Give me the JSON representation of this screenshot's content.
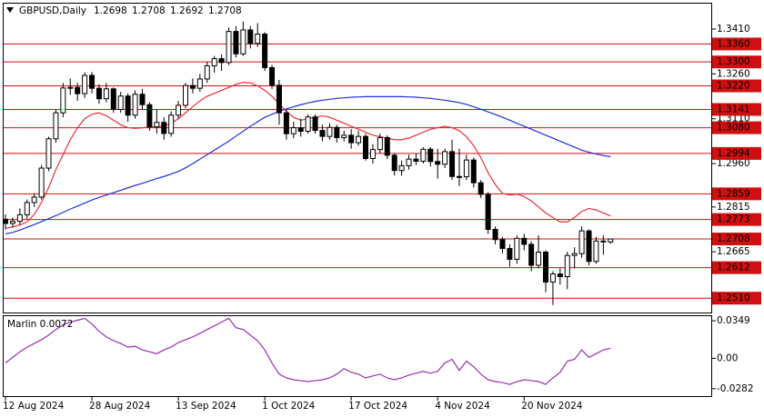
{
  "chart_data": [
    {
      "type": "candlestick",
      "title": "GBPUSD,Daily",
      "categories": [
        "12 Aug 2024",
        null,
        null,
        null,
        null,
        null,
        null,
        null,
        null,
        null,
        null,
        null,
        "28 Aug 2024",
        null,
        null,
        null,
        null,
        null,
        null,
        null,
        null,
        null,
        null,
        null,
        "13 Sep 2024",
        null,
        null,
        null,
        null,
        null,
        null,
        null,
        null,
        null,
        null,
        null,
        "1 Oct 2024",
        null,
        null,
        null,
        null,
        null,
        null,
        null,
        null,
        null,
        null,
        null,
        "17 Oct 2024",
        null,
        null,
        null,
        null,
        null,
        null,
        null,
        null,
        null,
        null,
        null,
        "4 Nov 2024",
        null,
        null,
        null,
        null,
        null,
        null,
        null,
        null,
        null,
        null,
        null,
        "20 Nov 2024",
        null,
        null,
        null,
        null,
        null,
        null,
        null,
        null,
        null,
        null,
        null,
        null
      ],
      "open": [
        1.2774,
        1.276,
        1.2767,
        1.2789,
        1.283,
        1.2848,
        1.2945,
        1.3043,
        1.313,
        1.3213,
        1.3215,
        1.3194,
        1.3255,
        1.3212,
        1.3177,
        1.321,
        1.3141,
        1.3186,
        1.3122,
        1.3192,
        1.3157,
        1.3083,
        1.3098,
        1.3061,
        1.3122,
        1.3155,
        1.3221,
        1.3212,
        1.3243,
        1.3287,
        1.3311,
        1.3298,
        1.3402,
        1.3327,
        1.3407,
        1.3362,
        1.3393,
        1.3281,
        1.3222,
        1.313,
        1.306,
        1.308,
        1.3068,
        1.3116,
        1.3071,
        1.3051,
        1.3081,
        1.3047,
        1.3055,
        1.303,
        1.3051,
        1.2977,
        1.3007,
        1.3047,
        1.2988,
        1.2937,
        1.2953,
        1.2975,
        1.2968,
        1.3008,
        1.2967,
        1.2958,
        1.3,
        1.2917,
        1.2916,
        1.2972,
        1.2896,
        1.2857,
        1.274,
        1.2706,
        1.2676,
        1.264,
        1.271,
        1.269,
        1.262,
        1.2664,
        1.2564,
        1.2591,
        1.2582,
        1.2653,
        1.2659,
        1.2735,
        1.2633,
        1.2701,
        1.2698
      ],
      "high": [
        1.279,
        1.278,
        1.281,
        1.284,
        1.286,
        1.2955,
        1.305,
        1.314,
        1.323,
        1.3245,
        1.323,
        1.3265,
        1.3266,
        1.3225,
        1.323,
        1.3215,
        1.32,
        1.3195,
        1.3205,
        1.321,
        1.3165,
        1.314,
        1.3115,
        1.3135,
        1.317,
        1.323,
        1.3245,
        1.326,
        1.33,
        1.332,
        1.3325,
        1.3415,
        1.342,
        1.3435,
        1.342,
        1.343,
        1.34,
        1.329,
        1.324,
        1.314,
        1.31,
        1.311,
        1.3125,
        1.3125,
        1.309,
        1.3095,
        1.309,
        1.307,
        1.3075,
        1.307,
        1.306,
        1.3025,
        1.306,
        1.3055,
        1.2995,
        1.297,
        1.299,
        1.2995,
        1.3015,
        1.3015,
        1.301,
        1.301,
        1.304,
        1.301,
        1.299,
        1.298,
        1.2905,
        1.2865,
        1.275,
        1.2715,
        1.269,
        1.272,
        1.2725,
        1.27,
        1.272,
        1.267,
        1.26,
        1.261,
        1.2665,
        1.268,
        1.275,
        1.274,
        1.2715,
        1.272,
        1.2708
      ],
      "low": [
        1.274,
        1.2748,
        1.2755,
        1.2775,
        1.2815,
        1.284,
        1.2935,
        1.303,
        1.3115,
        1.319,
        1.317,
        1.318,
        1.3195,
        1.316,
        1.3165,
        1.313,
        1.313,
        1.31,
        1.311,
        1.314,
        1.307,
        1.306,
        1.304,
        1.305,
        1.311,
        1.3145,
        1.3195,
        1.32,
        1.323,
        1.3265,
        1.327,
        1.329,
        1.3315,
        1.332,
        1.3345,
        1.335,
        1.327,
        1.321,
        1.309,
        1.304,
        1.3045,
        1.305,
        1.306,
        1.306,
        1.3035,
        1.304,
        1.303,
        1.3035,
        1.301,
        1.302,
        1.297,
        1.296,
        1.2995,
        1.2975,
        1.292,
        1.292,
        1.294,
        1.2955,
        1.296,
        1.295,
        1.291,
        1.2945,
        1.2905,
        1.2885,
        1.2905,
        1.288,
        1.2845,
        1.2725,
        1.269,
        1.266,
        1.2615,
        1.2625,
        1.267,
        1.26,
        1.261,
        1.253,
        1.2487,
        1.2555,
        1.254,
        1.261,
        1.2645,
        1.262,
        1.2625,
        1.2655,
        1.2692
      ],
      "close": [
        1.276,
        1.2767,
        1.2789,
        1.283,
        1.2848,
        1.2945,
        1.3043,
        1.313,
        1.3213,
        1.3215,
        1.3194,
        1.3255,
        1.3212,
        1.3177,
        1.321,
        1.3141,
        1.3186,
        1.3122,
        1.3192,
        1.3157,
        1.3083,
        1.3098,
        1.3061,
        1.3122,
        1.3155,
        1.3221,
        1.3212,
        1.3243,
        1.3287,
        1.3311,
        1.3298,
        1.3402,
        1.3327,
        1.3407,
        1.3362,
        1.3393,
        1.3281,
        1.3222,
        1.313,
        1.306,
        1.308,
        1.3068,
        1.3116,
        1.3071,
        1.3051,
        1.3081,
        1.3047,
        1.3055,
        1.303,
        1.3051,
        1.2977,
        1.3007,
        1.3047,
        1.2988,
        1.2937,
        1.2953,
        1.2975,
        1.2968,
        1.3008,
        1.2967,
        1.2958,
        1.3,
        1.2917,
        1.2916,
        1.2972,
        1.2896,
        1.2857,
        1.274,
        1.2706,
        1.2676,
        1.264,
        1.271,
        1.269,
        1.262,
        1.2664,
        1.2564,
        1.2591,
        1.2582,
        1.2653,
        1.2659,
        1.2735,
        1.2633,
        1.2701,
        1.2698,
        1.2708
      ],
      "up_color": "#ffffff",
      "down_color": "#000000",
      "ylim": [
        1.2462,
        1.3495
      ],
      "yticks": [
        {
          "value": 1.341,
          "label": "1.3410"
        },
        {
          "value": 1.326,
          "label": "1.3260"
        },
        {
          "value": 1.311,
          "label": "1.3110"
        },
        {
          "value": 1.296,
          "label": "1.2960"
        },
        1.2815,
        1.2665
      ],
      "levels": [
        {
          "value": 1.336,
          "label": "1.3360"
        },
        {
          "value": 1.33,
          "label": "1.3300"
        },
        {
          "value": 1.322,
          "label": "1.3220"
        },
        1.3141,
        {
          "value": 1.308,
          "label": "1.3080"
        },
        1.2994,
        1.2859,
        1.2773,
        1.2708,
        1.2612,
        {
          "value": 1.251,
          "label": "1.2510"
        }
      ],
      "level_color": "#d01010",
      "overlays": [
        {
          "color": "#e8303a",
          "values": [
            1.2744,
            1.2748,
            1.2755,
            1.2765,
            1.279,
            1.283,
            1.288,
            1.294,
            1.299,
            1.304,
            1.308,
            1.311,
            1.3125,
            1.313,
            1.312,
            1.3105,
            1.309,
            1.308,
            1.3078,
            1.308,
            1.3082,
            1.3083,
            1.3085,
            1.3095,
            1.311,
            1.313,
            1.315,
            1.317,
            1.3185,
            1.3195,
            1.3205,
            1.3215,
            1.3225,
            1.3232,
            1.323,
            1.322,
            1.3205,
            1.3185,
            1.316,
            1.3135,
            1.3115,
            1.3105,
            1.311,
            1.3115,
            1.312,
            1.3115,
            1.3105,
            1.3095,
            1.3085,
            1.3075,
            1.3065,
            1.3055,
            1.305,
            1.3045,
            1.304,
            1.304,
            1.3045,
            1.3055,
            1.3065,
            1.3075,
            1.308,
            1.3085,
            1.308,
            1.307,
            1.305,
            1.302,
            1.298,
            1.293,
            1.289,
            1.286,
            1.2855,
            1.2858,
            1.285,
            1.2835,
            1.2815,
            1.2795,
            1.278,
            1.2765,
            1.2765,
            1.278,
            1.28,
            1.281,
            1.2805,
            1.2795,
            1.2785
          ]
        },
        {
          "color": "#1f2fe0",
          "values": [
            1.2725,
            1.273,
            1.2738,
            1.2747,
            1.2756,
            1.2766,
            1.2776,
            1.2786,
            1.2797,
            1.2808,
            1.2818,
            1.2828,
            1.2838,
            1.2847,
            1.2855,
            1.2863,
            1.2871,
            1.2879,
            1.2887,
            1.2894,
            1.2902,
            1.291,
            1.2917,
            1.2925,
            1.2934,
            1.2946,
            1.296,
            1.2975,
            1.299,
            1.3005,
            1.302,
            1.3035,
            1.3052,
            1.3068,
            1.3085,
            1.31,
            1.3115,
            1.3125,
            1.3135,
            1.3143,
            1.315,
            1.3157,
            1.3163,
            1.3168,
            1.3172,
            1.3175,
            1.3178,
            1.318,
            1.3182,
            1.3183,
            1.3184,
            1.3184,
            1.3184,
            1.3184,
            1.3184,
            1.3184,
            1.3183,
            1.3182,
            1.318,
            1.3178,
            1.3175,
            1.3172,
            1.3168,
            1.3164,
            1.3158,
            1.315,
            1.3142,
            1.3133,
            1.3124,
            1.3115,
            1.3105,
            1.3095,
            1.3085,
            1.3075,
            1.3065,
            1.3055,
            1.3045,
            1.3035,
            1.3025,
            1.3015,
            1.3005,
            1.2998,
            1.2992,
            1.2987,
            1.2983
          ]
        }
      ]
    },
    {
      "type": "line",
      "title": "Marlin 0.0072",
      "color": "#9b2fb5",
      "values": [
        -0.0043,
        0.0009,
        0.0061,
        0.0104,
        0.0138,
        0.0173,
        0.0216,
        0.0268,
        0.0311,
        0.0337,
        0.0354,
        0.0372,
        0.032,
        0.0251,
        0.0199,
        0.0164,
        0.0138,
        0.0104,
        0.0112,
        0.0078,
        0.0061,
        0.0043,
        0.0078,
        0.0104,
        0.0147,
        0.0173,
        0.0199,
        0.0233,
        0.0268,
        0.0302,
        0.0337,
        0.0372,
        0.0285,
        0.0268,
        0.0216,
        0.0164,
        0.0078,
        -0.0043,
        -0.0147,
        -0.0182,
        -0.0199,
        -0.0207,
        -0.0216,
        -0.0207,
        -0.0199,
        -0.0182,
        -0.0147,
        -0.0095,
        -0.013,
        -0.0147,
        -0.0182,
        -0.0164,
        -0.0147,
        -0.0182,
        -0.0199,
        -0.0182,
        -0.0156,
        -0.0138,
        -0.0121,
        -0.0138,
        -0.0121,
        -0.0043,
        -0.0009,
        -0.0112,
        -0.0026,
        -0.0078,
        -0.0147,
        -0.0199,
        -0.0216,
        -0.0225,
        -0.0242,
        -0.0216,
        -0.0199,
        -0.0207,
        -0.0216,
        -0.0242,
        -0.0182,
        -0.013,
        -0.0026,
        -0.0009,
        0.0078,
        0.0009,
        0.0043,
        0.0078,
        0.0095
      ],
      "ylim": [
        -0.0351,
        0.0392
      ],
      "yticks": [
        0.0349,
        {
          "value": 0,
          "label": "0.00"
        },
        -0.0282
      ]
    }
  ]
}
